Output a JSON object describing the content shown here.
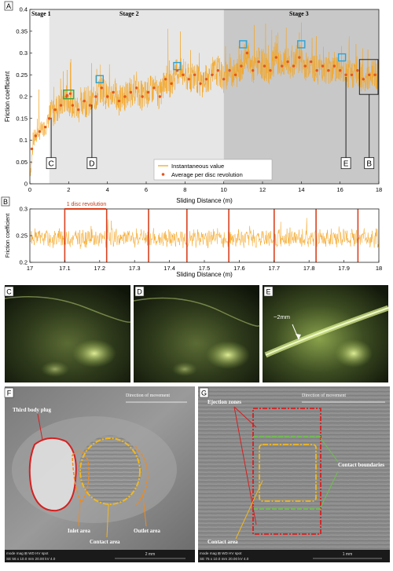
{
  "panel_letters": {
    "a": "A",
    "b": "B",
    "c": "C",
    "d": "D",
    "e": "E",
    "f": "F",
    "g": "G"
  },
  "colors": {
    "instantaneous": "#f5a623",
    "average": "#e2561f",
    "stage2_bg": "#e6e6e6",
    "stage3_bg": "#c8c8c8",
    "highlight_blue": "#2aa3d6",
    "highlight_green": "#35a842",
    "rev_line": "#d9411e"
  },
  "chart_data": [
    {
      "type": "line",
      "panel": "A",
      "xlabel": "Sliding Distance (m)",
      "ylabel": "Friction coefficient",
      "xlim": [
        0,
        18
      ],
      "ylim": [
        0,
        0.4
      ],
      "x_ticks": [
        0,
        2,
        4,
        6,
        8,
        10,
        12,
        14,
        16,
        18
      ],
      "y_ticks": [
        0,
        0.05,
        0.1,
        0.15,
        0.2,
        0.25,
        0.3,
        0.35,
        0.4
      ],
      "stages": [
        {
          "name": "Stage 1",
          "from": 0,
          "to": 1
        },
        {
          "name": "Stage 2",
          "from": 1,
          "to": 10
        },
        {
          "name": "Stage 3",
          "from": 10,
          "to": 18
        }
      ],
      "legend": {
        "position": "bottom-center",
        "entries": [
          "Instantaneous value",
          "Average per disc revolution"
        ]
      },
      "series": [
        {
          "name": "Average per disc revolution",
          "x": [
            0.1,
            0.3,
            0.5,
            0.8,
            1.0,
            1.3,
            1.6,
            1.9,
            2.2,
            2.5,
            2.8,
            3.1,
            3.4,
            3.7,
            4.0,
            4.3,
            4.6,
            4.9,
            5.2,
            5.5,
            5.8,
            6.1,
            6.4,
            6.7,
            7.0,
            7.3,
            7.6,
            7.9,
            8.2,
            8.5,
            8.8,
            9.1,
            9.4,
            9.7,
            10.0,
            10.3,
            10.6,
            10.9,
            11.2,
            11.5,
            11.8,
            12.1,
            12.4,
            12.7,
            13.0,
            13.3,
            13.6,
            13.9,
            14.2,
            14.5,
            14.8,
            15.1,
            15.4,
            15.7,
            16.0,
            16.3,
            16.6,
            16.9,
            17.2,
            17.5,
            17.8
          ],
          "y": [
            0.08,
            0.11,
            0.12,
            0.13,
            0.15,
            0.17,
            0.18,
            0.2,
            0.18,
            0.17,
            0.19,
            0.18,
            0.2,
            0.22,
            0.2,
            0.21,
            0.19,
            0.2,
            0.21,
            0.22,
            0.2,
            0.21,
            0.22,
            0.2,
            0.24,
            0.23,
            0.26,
            0.25,
            0.24,
            0.25,
            0.23,
            0.24,
            0.25,
            0.26,
            0.24,
            0.26,
            0.25,
            0.27,
            0.3,
            0.26,
            0.28,
            0.27,
            0.26,
            0.29,
            0.27,
            0.28,
            0.27,
            0.29,
            0.27,
            0.28,
            0.26,
            0.27,
            0.26,
            0.27,
            0.26,
            0.25,
            0.25,
            0.26,
            0.24,
            0.25,
            0.25
          ]
        },
        {
          "name": "Instantaneous value",
          "y_range": [
            0.1,
            0.37
          ]
        }
      ],
      "annotations": [
        {
          "label": "C",
          "x": 1.1
        },
        {
          "label": "D",
          "x": 3.2
        },
        {
          "label": "E",
          "x": 16.3
        },
        {
          "label": "B",
          "x": 17.0,
          "x_end": 18
        }
      ]
    },
    {
      "type": "line",
      "panel": "B",
      "xlabel": "Sliding Distance (m)",
      "ylabel": "Friction coefficient",
      "xlim": [
        17,
        18
      ],
      "ylim": [
        0.2,
        0.3
      ],
      "x_ticks": [
        17,
        17.1,
        17.2,
        17.3,
        17.4,
        17.5,
        17.6,
        17.7,
        17.8,
        17.9,
        18
      ],
      "y_ticks": [
        0.2,
        0.25,
        0.3
      ],
      "revolution_marks": [
        17.1,
        17.22,
        17.34,
        17.45,
        17.57,
        17.7,
        17.82,
        17.94
      ],
      "annotation": "1 disc revolution"
    }
  ],
  "panel_e": {
    "scale_label": "~2mm"
  },
  "panel_f": {
    "direction_label": "Direction of movement",
    "labels": [
      "Third body plug",
      "Inlet area",
      "Contact area",
      "Outlet area"
    ],
    "sem_bar": {
      "header": "mode  mag  ⊞   WD     HV    spot",
      "values": "SE    56 x     10.0 mm  20.00 kV  4.0",
      "scale": "2 mm"
    }
  },
  "panel_g": {
    "direction_label": "Direction of movement",
    "labels": [
      "Ejection zones",
      "Contact boundaries",
      "Contact area"
    ],
    "sem_bar": {
      "header": "mode  mag  ⊞   WD     HV    spot",
      "values": "SE    75 x     10.0 mm  20.00 kV  4.0",
      "scale": "1 mm"
    }
  }
}
